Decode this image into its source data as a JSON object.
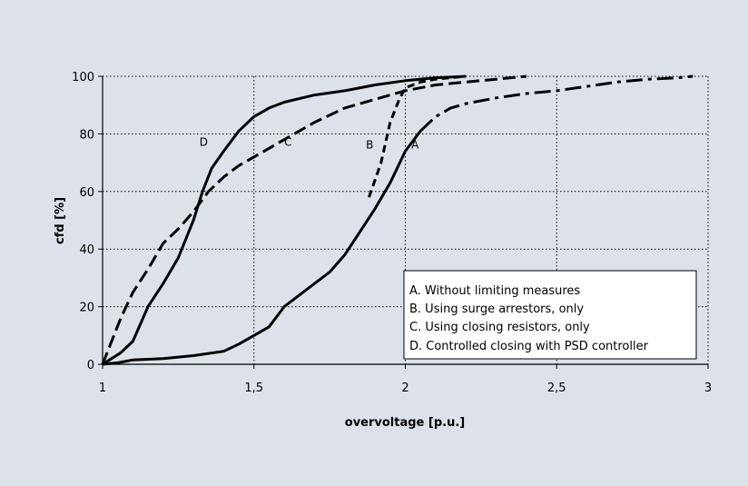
{
  "chart_data": {
    "type": "line",
    "title": "",
    "xlabel": "overvoltage [p.u.]",
    "ylabel": "cfd [%]",
    "xlim": [
      1,
      3
    ],
    "ylim": [
      0,
      100
    ],
    "x_ticks": [
      1,
      1.5,
      2,
      2.5,
      3
    ],
    "x_tick_labels": [
      "1",
      "1,5",
      "2",
      "2,5",
      "3"
    ],
    "y_ticks": [
      0,
      20,
      40,
      60,
      80,
      100
    ],
    "y_tick_labels": [
      "0",
      "20",
      "40",
      "60",
      "80",
      "100"
    ],
    "grid": "dotted",
    "legend_position": "bottom-right",
    "legend": [
      "A. Without limiting measures",
      "B. Using surge arrestors, only",
      "C. Using closing resistors, only",
      "D. Controlled closing with PSD controller"
    ],
    "series": [
      {
        "label": "A",
        "style": "solid",
        "points": [
          [
            1.0,
            0
          ],
          [
            1.05,
            0.5
          ],
          [
            1.1,
            1.5
          ],
          [
            1.2,
            2
          ],
          [
            1.3,
            3
          ],
          [
            1.4,
            4.5
          ],
          [
            1.45,
            7
          ],
          [
            1.5,
            10
          ],
          [
            1.55,
            13
          ],
          [
            1.6,
            20
          ],
          [
            1.7,
            28
          ],
          [
            1.75,
            32
          ],
          [
            1.8,
            38
          ],
          [
            1.85,
            46
          ],
          [
            1.9,
            54
          ],
          [
            1.95,
            63
          ],
          [
            2.0,
            74
          ],
          [
            2.05,
            81
          ],
          [
            2.1,
            86
          ],
          [
            2.15,
            89
          ],
          [
            2.2,
            90.5
          ],
          [
            2.3,
            92.5
          ],
          [
            2.4,
            94
          ],
          [
            2.5,
            95
          ],
          [
            2.6,
            96.5
          ],
          [
            2.7,
            98
          ],
          [
            2.8,
            99
          ],
          [
            2.9,
            99.5
          ],
          [
            2.95,
            100
          ]
        ]
      },
      {
        "label": "B",
        "style": "dashed",
        "points": [
          [
            1.88,
            58
          ],
          [
            1.92,
            70
          ],
          [
            1.95,
            84
          ],
          [
            1.98,
            92
          ],
          [
            2.0,
            96
          ],
          [
            2.05,
            98
          ],
          [
            2.1,
            99
          ],
          [
            2.2,
            100
          ]
        ]
      },
      {
        "label": "C",
        "style": "dash",
        "points": [
          [
            1.0,
            0
          ],
          [
            1.03,
            8
          ],
          [
            1.06,
            16
          ],
          [
            1.1,
            25
          ],
          [
            1.15,
            33
          ],
          [
            1.2,
            42
          ],
          [
            1.25,
            47
          ],
          [
            1.3,
            53
          ],
          [
            1.35,
            60
          ],
          [
            1.4,
            65
          ],
          [
            1.45,
            69
          ],
          [
            1.5,
            72
          ],
          [
            1.55,
            75
          ],
          [
            1.6,
            78
          ],
          [
            1.65,
            81
          ],
          [
            1.7,
            84
          ],
          [
            1.8,
            89
          ],
          [
            1.9,
            92
          ],
          [
            2.0,
            95
          ],
          [
            2.1,
            97
          ],
          [
            2.2,
            98
          ],
          [
            2.3,
            99
          ],
          [
            2.4,
            100
          ]
        ]
      },
      {
        "label": "D",
        "style": "solid",
        "points": [
          [
            1.0,
            0
          ],
          [
            1.03,
            2
          ],
          [
            1.06,
            4
          ],
          [
            1.1,
            8
          ],
          [
            1.15,
            20
          ],
          [
            1.2,
            28
          ],
          [
            1.25,
            37
          ],
          [
            1.3,
            50
          ],
          [
            1.33,
            60
          ],
          [
            1.36,
            68
          ],
          [
            1.4,
            74
          ],
          [
            1.45,
            81
          ],
          [
            1.5,
            86
          ],
          [
            1.55,
            89
          ],
          [
            1.6,
            91
          ],
          [
            1.7,
            93.5
          ],
          [
            1.8,
            95
          ],
          [
            1.9,
            97
          ],
          [
            2.0,
            98.5
          ],
          [
            2.1,
            99.5
          ],
          [
            2.2,
            100
          ]
        ]
      }
    ],
    "annotations": [
      {
        "text": "A",
        "x": 2.02,
        "y": 73
      },
      {
        "text": "B",
        "x": 1.87,
        "y": 73
      },
      {
        "text": "C",
        "x": 1.6,
        "y": 74
      },
      {
        "text": "D",
        "x": 1.32,
        "y": 74
      }
    ]
  }
}
